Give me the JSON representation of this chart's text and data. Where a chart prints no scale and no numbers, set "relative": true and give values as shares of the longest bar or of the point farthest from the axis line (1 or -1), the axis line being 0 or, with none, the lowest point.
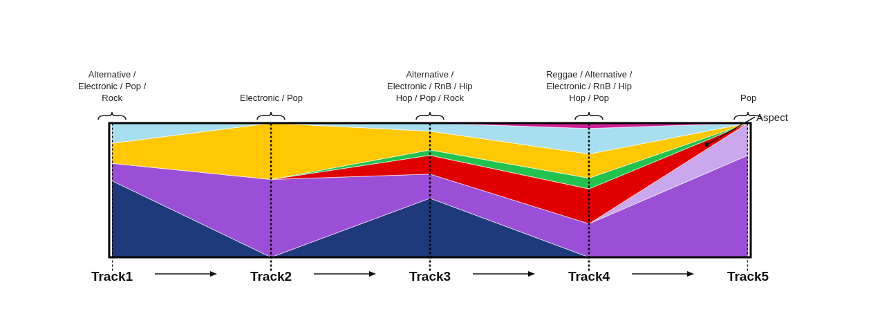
{
  "chart_data": {
    "type": "area",
    "stacked": true,
    "relative": true,
    "categories": [
      "Track1",
      "Track2",
      "Track3",
      "Track4",
      "Track5"
    ],
    "series": [
      {
        "color": "#1f3a7a",
        "values": [
          0.57,
          0,
          0.44,
          0,
          null
        ]
      },
      {
        "color": "#9b4fd6",
        "values": [
          0.13,
          0.58,
          0.18,
          0.25,
          0.76
        ]
      },
      {
        "color": "#c9a8ee",
        "values": [
          null,
          null,
          null,
          0,
          0.24
        ]
      },
      {
        "color": "#e00000",
        "values": [
          null,
          0,
          0.14,
          0.26,
          0
        ]
      },
      {
        "color": "#22c24f",
        "values": [
          null,
          0,
          0.04,
          0.08,
          0
        ]
      },
      {
        "color": "#ffc800",
        "values": [
          0.15,
          0.42,
          0.14,
          0.18,
          0
        ]
      },
      {
        "color": "#a8dff0",
        "values": [
          0.15,
          0,
          0.06,
          0.19,
          0
        ]
      },
      {
        "color": "#d0209a",
        "values": [
          null,
          null,
          0,
          0.04,
          0
        ]
      }
    ],
    "ref_lines": [
      {
        "axis": "x",
        "value": "Track1",
        "line_style": "dotted",
        "color": "#000000"
      },
      {
        "axis": "x",
        "value": "Track2",
        "line_style": "dotted",
        "color": "#000000"
      },
      {
        "axis": "x",
        "value": "Track3",
        "line_style": "dotted",
        "color": "#000000"
      },
      {
        "axis": "x",
        "value": "Track4",
        "line_style": "dotted",
        "color": "#000000"
      },
      {
        "axis": "x",
        "value": "Track5",
        "line_style": "dotted",
        "color": "#000000"
      }
    ],
    "annotations": [
      "Alternative / Electronic / Pop / Rock",
      "Electronic / Pop",
      "Alternative / Electronic / RnB / Hip Hop / Pop / Rock",
      "Reggae / Alternative / Electronic / RnB / Hip Hop / Pop",
      "Pop",
      "Aspect"
    ]
  }
}
